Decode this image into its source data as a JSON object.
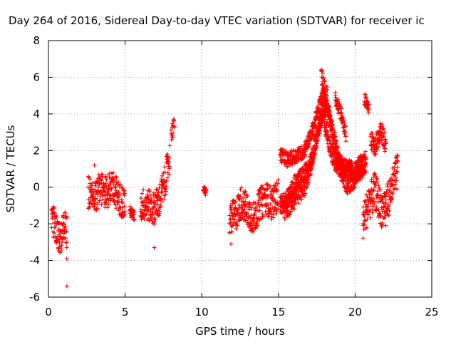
{
  "chart_data": {
    "type": "scatter",
    "title": "Day 264 of 2016, Sidereal Day-to-day VTEC variation (SDTVAR) for receiver ic",
    "xlabel": "GPS time / hours",
    "ylabel": "SDTVAR / TECUs",
    "xlim": [
      0,
      25
    ],
    "ylim": [
      -6,
      8
    ],
    "xticks": [
      "0",
      "5",
      "10",
      "15",
      "20",
      "25"
    ],
    "yticks": [
      "-6",
      "-4",
      "-2",
      "0",
      "2",
      "4",
      "6",
      "8"
    ],
    "grid": true,
    "marker": "plus",
    "color": "#ff0000",
    "series": [
      {
        "name": "SDTVAR",
        "segments": [
          {
            "x": [
              0.2,
              0.4,
              0.6,
              0.8,
              1.0,
              1.2
            ],
            "y": [
              -1.5,
              -2.0,
              -2.6,
              -2.8,
              -1.8,
              -2.5
            ],
            "spread": 0.9
          },
          {
            "x": [
              2.6,
              3.0,
              3.4,
              3.8,
              4.2,
              4.6,
              5.0
            ],
            "y": [
              -0.3,
              -0.6,
              -0.1,
              -0.3,
              0.2,
              -0.6,
              -0.9
            ],
            "spread": 0.9
          },
          {
            "x": [
              5.3,
              5.6
            ],
            "y": [
              -1.3,
              -1.6
            ],
            "spread": 0.3
          },
          {
            "x": [
              6.0,
              6.4,
              6.8,
              7.2,
              7.6,
              7.9
            ],
            "y": [
              -1.0,
              -0.9,
              -1.2,
              -0.8,
              0.3,
              1.6
            ],
            "spread": 0.9
          },
          {
            "x": [
              8.0,
              8.2
            ],
            "y": [
              3.0,
              3.3
            ],
            "spread": 0.5
          },
          {
            "x": [
              10.1,
              10.3
            ],
            "y": [
              -0.1,
              -0.3
            ],
            "spread": 0.2
          },
          {
            "x": [
              11.8,
              12.2,
              12.6,
              13.0,
              13.4,
              13.8,
              14.2,
              14.6,
              15.0
            ],
            "y": [
              -1.8,
              -1.5,
              -0.8,
              -1.3,
              -1.7,
              -0.9,
              -0.6,
              -0.9,
              -0.4
            ],
            "spread": 0.9
          },
          {
            "x": [
              15.1,
              15.6,
              16.1,
              16.6,
              17.1,
              17.5,
              17.9,
              18.3,
              18.7,
              19.1,
              19.5,
              19.9,
              20.3,
              20.7
            ],
            "y": [
              1.8,
              1.5,
              1.7,
              1.9,
              2.8,
              3.9,
              5.1,
              4.1,
              2.4,
              1.2,
              1.1,
              0.5,
              1.0,
              1.7
            ],
            "spread": 0.4
          },
          {
            "x": [
              15.1,
              15.6,
              16.1,
              16.6,
              17.1,
              17.5,
              17.9,
              18.3,
              18.7,
              19.1,
              19.5,
              19.9,
              20.3,
              20.7
            ],
            "y": [
              -0.9,
              -0.6,
              0.2,
              0.6,
              1.2,
              2.8,
              4.2,
              2.2,
              1.3,
              0.8,
              0.1,
              0.4,
              0.9,
              1.2
            ],
            "spread": 0.5
          },
          {
            "x": [
              15.2,
              15.7,
              16.2,
              16.7,
              17.2,
              17.6,
              18.0,
              18.4,
              18.8,
              19.2,
              19.6,
              20.0,
              20.4
            ],
            "y": [
              -1.3,
              -1.0,
              -0.4,
              0.0,
              1.6,
              3.2,
              4.4,
              3.6,
              1.6,
              0.9,
              0.9,
              0.8,
              1.2
            ],
            "spread": 0.6
          },
          {
            "x": [
              17.8,
              18.0,
              18.2
            ],
            "y": [
              6.1,
              5.4,
              4.9
            ],
            "spread": 0.5
          },
          {
            "x": [
              18.7,
              19.0,
              19.4
            ],
            "y": [
              4.8,
              4.3,
              2.8
            ],
            "spread": 0.4
          },
          {
            "x": [
              20.6,
              20.9
            ],
            "y": [
              4.8,
              4.3
            ],
            "spread": 0.4
          },
          {
            "x": [
              20.5,
              20.9,
              21.3,
              21.7,
              22.1,
              22.5,
              22.8
            ],
            "y": [
              -2.0,
              -0.8,
              -0.2,
              -1.2,
              -0.8,
              0.2,
              1.0
            ],
            "spread": 1.0
          },
          {
            "x": [
              21.0,
              21.3,
              21.7,
              22.0
            ],
            "y": [
              2.6,
              2.2,
              3.1,
              2.3
            ],
            "spread": 0.5
          }
        ],
        "outliers": [
          {
            "x": 1.2,
            "y": -5.4
          },
          {
            "x": 1.2,
            "y": -3.9
          },
          {
            "x": 6.9,
            "y": -3.3
          },
          {
            "x": 3.0,
            "y": 1.2
          },
          {
            "x": 22.0,
            "y": -2.1
          },
          {
            "x": 11.9,
            "y": -3.1
          }
        ]
      }
    ]
  }
}
